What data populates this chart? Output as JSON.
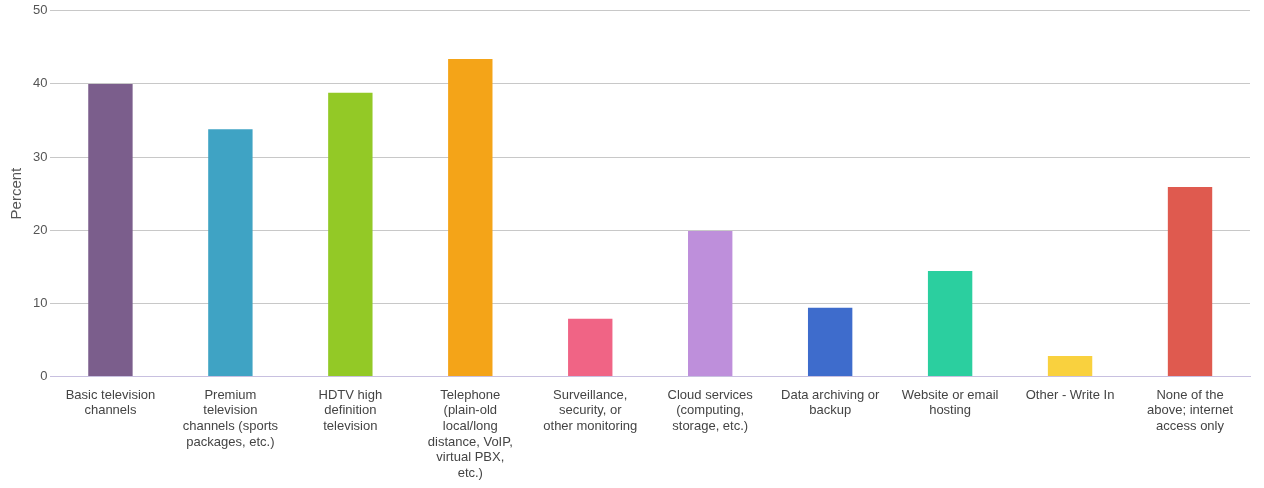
{
  "chart_data": {
    "type": "bar",
    "ylabel": "Percent",
    "categories": [
      "Basic television channels",
      "Premium television channels (sports packages, etc.)",
      "HDTV high definition television",
      "Telephone (plain-old local/long distance, VoIP, virtual PBX, etc.)",
      "Surveillance, security, or other monitoring",
      "Cloud services (computing, storage, etc.)",
      "Data archiving or backup",
      "Website or email hosting",
      "Other - Write In",
      "None of the above; internet access only"
    ],
    "values": [
      40,
      33.8,
      38.8,
      43.4,
      7.9,
      19.9,
      9.4,
      14.4,
      2.8,
      25.9
    ],
    "colors": [
      "#7b5e8c",
      "#3fa3c4",
      "#93c926",
      "#f4a418",
      "#f06485",
      "#be8fdb",
      "#3e6ccc",
      "#2bcf9f",
      "#f9d13e",
      "#df5a4f"
    ],
    "ylim": [
      0,
      50
    ],
    "yticks": [
      0,
      10,
      20,
      30,
      40,
      50
    ],
    "grid": "y",
    "legend": false
  }
}
